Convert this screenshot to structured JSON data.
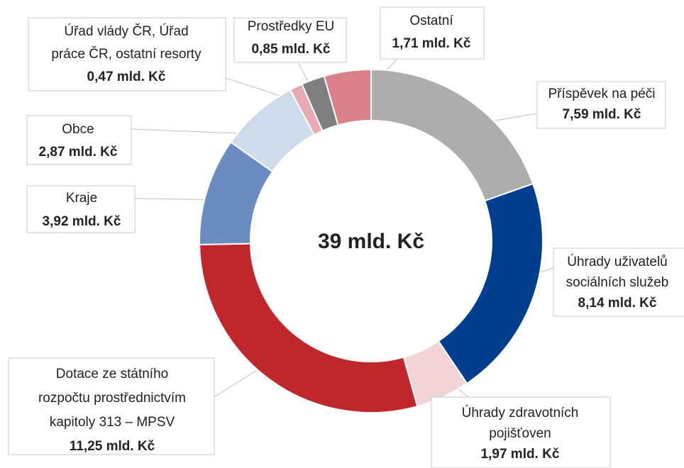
{
  "chart_data": {
    "type": "donut",
    "center_label": "39 mld. Kč",
    "categories": [
      "Příspěvek na péči",
      "Úhrady uživatelů\nsociálních služeb",
      "Úhrady zdravotních\npojišťoven",
      "Dotace ze státního\nrozpočtu prostřednictvím\nkapitoly 313 – MPSV",
      "Kraje",
      "Obce",
      "Úřad vlády ČR, Úřad\npráce ČR, ostatní resorty",
      "Prostředky EU",
      "Ostatní"
    ],
    "values": [
      7.59,
      8.14,
      1.97,
      11.25,
      3.92,
      2.87,
      0.47,
      0.85,
      1.71
    ],
    "value_labels": [
      "7,59 mld. Kč",
      "8,14 mld. Kč",
      "1,97 mld. Kč",
      "11,25 mld. Kč",
      "3,92 mld. Kč",
      "2,87 mld. Kč",
      "0,47 mld. Kč",
      "0,85 mld. Kč",
      "1,71 mld. Kč"
    ],
    "colors": [
      "#adadad",
      "#003f8f",
      "#f2d3d6",
      "#c0272d",
      "#6a8cc0",
      "#cddbeb",
      "#e8a9b0",
      "#7f7f7f",
      "#d98088"
    ],
    "highlight_color": "#c0272d",
    "highlight_index": 3
  }
}
